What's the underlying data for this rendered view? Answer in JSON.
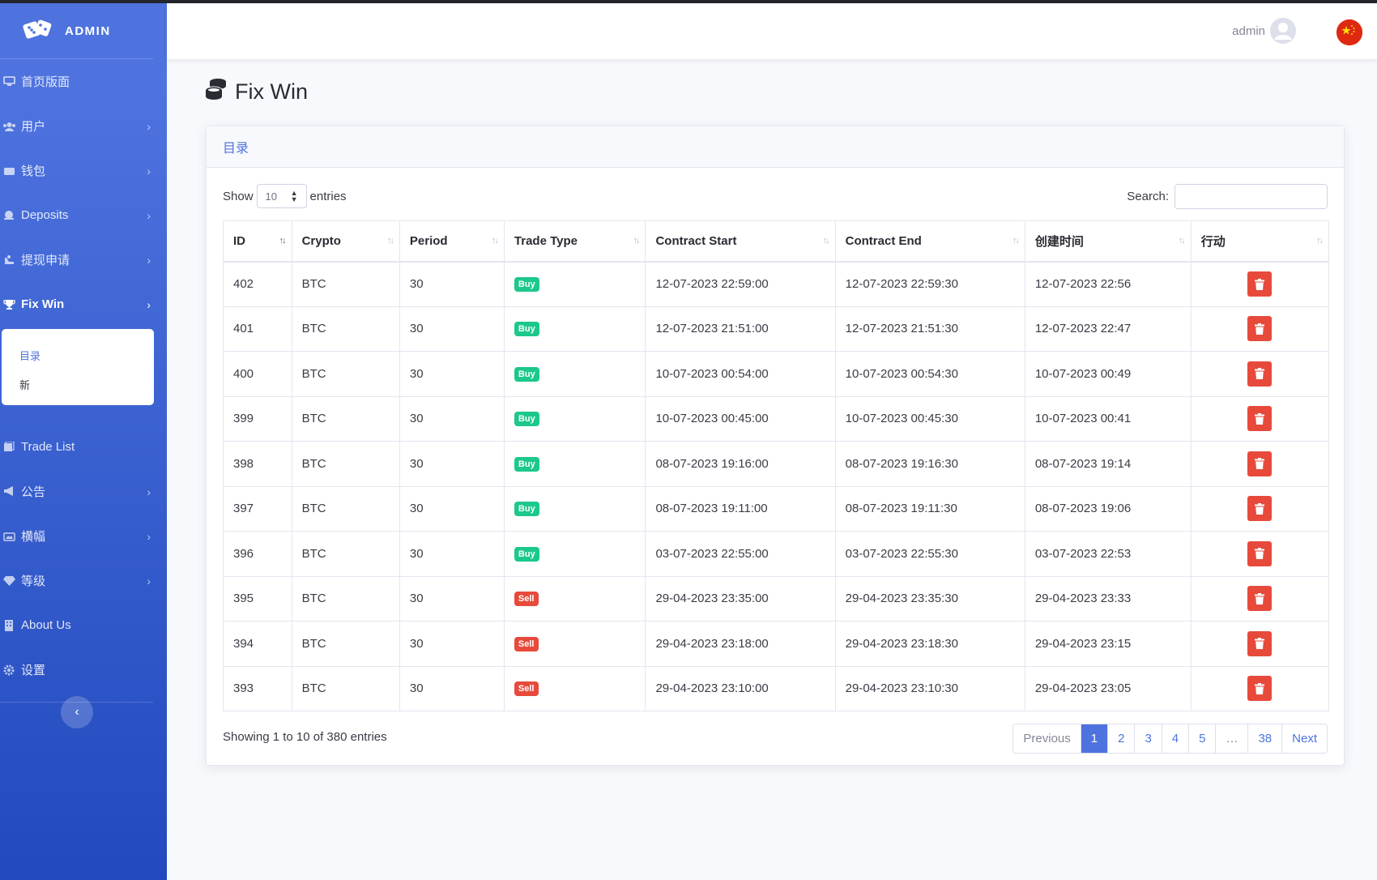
{
  "brand": {
    "name": "ADMIN",
    "icon": "dice-icon"
  },
  "sidebar": {
    "items": [
      {
        "label": "首页版面",
        "icon": "desktop-icon",
        "chevron": false
      },
      {
        "label": "用户",
        "icon": "users-icon",
        "chevron": true
      },
      {
        "label": "钱包",
        "icon": "wallet-icon",
        "chevron": true
      },
      {
        "label": "Deposits",
        "icon": "deposit-icon",
        "chevron": true
      },
      {
        "label": "提现申请",
        "icon": "withdraw-icon",
        "chevron": true
      },
      {
        "label": "Fix Win",
        "icon": "trophy-icon",
        "chevron": true,
        "active": true
      },
      {
        "label": "Trade List",
        "icon": "list-icon",
        "chevron": false
      },
      {
        "label": "公告",
        "icon": "megaphone-icon",
        "chevron": true
      },
      {
        "label": "横幅",
        "icon": "banner-icon",
        "chevron": true
      },
      {
        "label": "等级",
        "icon": "gem-icon",
        "chevron": true
      },
      {
        "label": "About Us",
        "icon": "building-icon",
        "chevron": false
      },
      {
        "label": "设置",
        "icon": "gear-icon",
        "chevron": false
      }
    ],
    "sub_items": [
      {
        "label": "目录",
        "current": true
      },
      {
        "label": "新",
        "current": false
      }
    ]
  },
  "topbar": {
    "user": "admin",
    "avatar_icon": "user-circle-icon",
    "flag_icon": "china-flag-icon"
  },
  "page": {
    "title": "Fix Win",
    "title_icon": "coins-icon"
  },
  "card": {
    "header": "目录"
  },
  "controls": {
    "show_label": "Show",
    "entries_label": "entries",
    "length_value": "10",
    "search_label": "Search:",
    "search_value": ""
  },
  "table": {
    "columns": [
      "ID",
      "Crypto",
      "Period",
      "Trade Type",
      "Contract Start",
      "Contract End",
      "创建时间",
      "行动"
    ],
    "rows": [
      {
        "id": "402",
        "crypto": "BTC",
        "period": "30",
        "type": "Buy",
        "start": "12-07-2023 22:59:00",
        "end": "12-07-2023 22:59:30",
        "created": "12-07-2023 22:56"
      },
      {
        "id": "401",
        "crypto": "BTC",
        "period": "30",
        "type": "Buy",
        "start": "12-07-2023 21:51:00",
        "end": "12-07-2023 21:51:30",
        "created": "12-07-2023 22:47"
      },
      {
        "id": "400",
        "crypto": "BTC",
        "period": "30",
        "type": "Buy",
        "start": "10-07-2023 00:54:00",
        "end": "10-07-2023 00:54:30",
        "created": "10-07-2023 00:49"
      },
      {
        "id": "399",
        "crypto": "BTC",
        "period": "30",
        "type": "Buy",
        "start": "10-07-2023 00:45:00",
        "end": "10-07-2023 00:45:30",
        "created": "10-07-2023 00:41"
      },
      {
        "id": "398",
        "crypto": "BTC",
        "period": "30",
        "type": "Buy",
        "start": "08-07-2023 19:16:00",
        "end": "08-07-2023 19:16:30",
        "created": "08-07-2023 19:14"
      },
      {
        "id": "397",
        "crypto": "BTC",
        "period": "30",
        "type": "Buy",
        "start": "08-07-2023 19:11:00",
        "end": "08-07-2023 19:11:30",
        "created": "08-07-2023 19:06"
      },
      {
        "id": "396",
        "crypto": "BTC",
        "period": "30",
        "type": "Buy",
        "start": "03-07-2023 22:55:00",
        "end": "03-07-2023 22:55:30",
        "created": "03-07-2023 22:53"
      },
      {
        "id": "395",
        "crypto": "BTC",
        "period": "30",
        "type": "Sell",
        "start": "29-04-2023 23:35:00",
        "end": "29-04-2023 23:35:30",
        "created": "29-04-2023 23:33"
      },
      {
        "id": "394",
        "crypto": "BTC",
        "period": "30",
        "type": "Sell",
        "start": "29-04-2023 23:18:00",
        "end": "29-04-2023 23:18:30",
        "created": "29-04-2023 23:15"
      },
      {
        "id": "393",
        "crypto": "BTC",
        "period": "30",
        "type": "Sell",
        "start": "29-04-2023 23:10:00",
        "end": "29-04-2023 23:10:30",
        "created": "29-04-2023 23:05"
      }
    ],
    "delete_icon": "trash-icon"
  },
  "footer": {
    "info": "Showing 1 to 10 of 380 entries",
    "pages": [
      "Previous",
      "1",
      "2",
      "3",
      "4",
      "5",
      "…",
      "38",
      "Next"
    ],
    "current_page": "1"
  },
  "colors": {
    "primary": "#4e73df",
    "sidebar_bottom": "#224abe",
    "buy": "#1cc88a",
    "danger": "#e74a3b"
  }
}
